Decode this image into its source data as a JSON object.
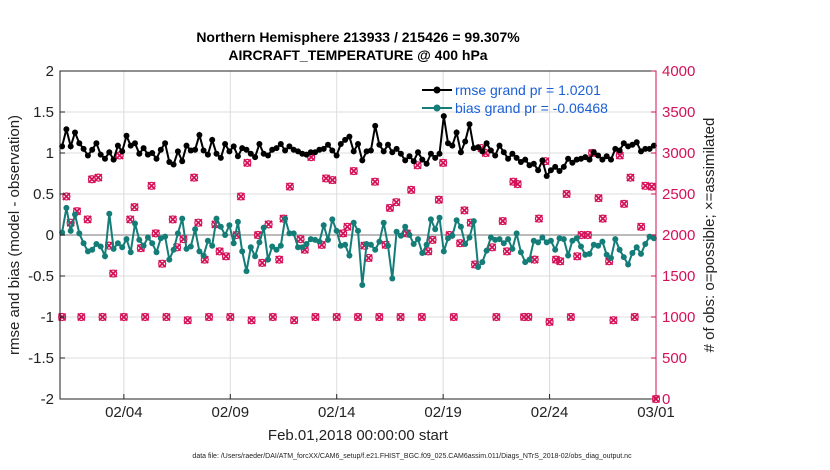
{
  "chart_data": {
    "type": "line",
    "title": "Northern Hemisphere 213933 / 215426 = 99.307%",
    "subtitle": "AIRCRAFT_TEMPERATURE @ 400 hPa",
    "xlabel": "Feb.01,2018 00:00:00 start",
    "ylabel": "rmse and bias (model - observation)",
    "y2label": "# of obs: o=possible; ×=assimilated",
    "footer": "data file: /Users/raeder/DAI/ATM_forcXX/CAM6_setup/f.e21.FHIST_BGC.f09_025.CAM6assim.011/Diags_NTrS_2018-02/obs_diag_output.nc",
    "xlim": [
      0,
      28
    ],
    "ylim": [
      -2,
      2
    ],
    "y2lim": [
      0,
      4000
    ],
    "xticks": [
      {
        "x": 3,
        "label": "02/04"
      },
      {
        "x": 8,
        "label": "02/09"
      },
      {
        "x": 13,
        "label": "02/14"
      },
      {
        "x": 18,
        "label": "02/19"
      },
      {
        "x": 23,
        "label": "02/24"
      },
      {
        "x": 28,
        "label": "03/01"
      }
    ],
    "yticks": [
      {
        "y": -2,
        "label": "-2"
      },
      {
        "y": -1.5,
        "label": "-1.5"
      },
      {
        "y": -1,
        "label": "-1"
      },
      {
        "y": -0.5,
        "label": "-0.5"
      },
      {
        "y": 0,
        "label": "0"
      },
      {
        "y": 0.5,
        "label": "0.5"
      },
      {
        "y": 1,
        "label": "1"
      },
      {
        "y": 1.5,
        "label": "1.5"
      },
      {
        "y": 2,
        "label": "2"
      }
    ],
    "y2ticks": [
      {
        "y": 0,
        "label": "0"
      },
      {
        "y": 500,
        "label": "500"
      },
      {
        "y": 1000,
        "label": "1000"
      },
      {
        "y": 1500,
        "label": "1500"
      },
      {
        "y": 2000,
        "label": "2000"
      },
      {
        "y": 2500,
        "label": "2500"
      },
      {
        "y": 3000,
        "label": "3000"
      },
      {
        "y": 3500,
        "label": "3500"
      },
      {
        "y": 4000,
        "label": "4000"
      }
    ],
    "grid": true,
    "legend_position": "top-right",
    "colors": {
      "rmse": "#000000",
      "bias": "#147d78",
      "obs": "#d41158",
      "y2axis": "#d41158",
      "zero": "#bbbbbb"
    },
    "series": [
      {
        "name": "rmse grand pr = 1.0201",
        "axis": "left",
        "values": [
          1.08,
          1.29,
          1.08,
          1.25,
          1.12,
          1.05,
          0.97,
          1.04,
          1.12,
          0.98,
          0.93,
          1.01,
          0.92,
          1.09,
          1.02,
          1.21,
          1.09,
          1.12,
          0.99,
          1.06,
          0.98,
          1.0,
          0.93,
          1.04,
          1.12,
          0.89,
          0.86,
          1.02,
          0.9,
          1.09,
          1.03,
          1.04,
          1.22,
          1.03,
          0.98,
          1.16,
          0.99,
          0.94,
          1.11,
          1.02,
          1.08,
          0.96,
          1.06,
          1.04,
          0.99,
          0.95,
          1.11,
          0.99,
          0.97,
          1.04,
          1.06,
          1.11,
          1.03,
          1.08,
          1.04,
          1.02,
          0.99,
          0.98,
          1.01,
          1.01,
          1.04,
          1.05,
          1.1,
          1.03,
          0.97,
          1.11,
          1.16,
          1.2,
          1.02,
          1.11,
          0.91,
          1.02,
          1.03,
          1.33,
          1.1,
          1.02,
          1.1,
          1.01,
          1.05,
          0.99,
          0.91,
          0.96,
          0.9,
          1.01,
          0.92,
          0.87,
          0.99,
          0.94,
          0.99,
          1.45,
          1.12,
          1.09,
          1.25,
          1.01,
          1.14,
          1.35,
          1.06,
          1.07,
          1.02,
          1.12,
          1.03,
          0.97,
          1.09,
          1.01,
          0.93,
          0.99,
          0.94,
          0.89,
          0.92,
          0.85,
          0.87,
          0.79,
          0.91,
          0.72,
          0.79,
          0.83,
          0.78,
          0.83,
          0.93,
          0.88,
          0.92,
          0.93,
          0.95,
          0.92,
          1.01,
          0.97,
          0.92,
          0.96,
          0.92,
          1.05,
          1.03,
          1.12,
          1.08,
          1.1,
          1.13,
          1.02,
          1.05,
          1.05,
          1.09
        ]
      },
      {
        "name": "bias grand pr = -0.06468",
        "axis": "left",
        "values": [
          0.03,
          0.33,
          0.05,
          0.25,
          0.02,
          -0.1,
          -0.2,
          -0.18,
          -0.11,
          -0.14,
          -0.26,
          0.26,
          -0.17,
          -0.1,
          -0.15,
          -0.05,
          -0.21,
          0.14,
          -0.06,
          -0.13,
          -0.03,
          -0.1,
          -0.21,
          -0.04,
          -0.02,
          -0.3,
          -0.18,
          0.02,
          0.2,
          -0.17,
          -0.14,
          0.07,
          -0.2,
          -0.25,
          -0.07,
          -0.13,
          0.2,
          0.1,
          0.0,
          0.12,
          -0.1,
          0.16,
          -0.2,
          -0.44,
          -0.15,
          -0.26,
          -0.09,
          0.09,
          -0.3,
          -0.14,
          -0.18,
          -0.13,
          0.2,
          0.02,
          0.02,
          -0.15,
          -0.15,
          -0.11,
          -0.05,
          -0.06,
          -0.08,
          0.12,
          -0.06,
          0.19,
          0.05,
          -0.13,
          -0.12,
          -0.25,
          0.15,
          0.05,
          -0.61,
          -0.11,
          -0.12,
          -0.18,
          -0.08,
          0.15,
          -0.13,
          -0.53,
          0.04,
          -0.01,
          0.1,
          0.0,
          -0.11,
          -0.05,
          -0.22,
          -0.12,
          0.19,
          0.07,
          0.21,
          -0.2,
          -0.04,
          -0.01,
          0.18,
          0.1,
          -0.11,
          -0.03,
          0.17,
          -0.39,
          -0.33,
          -0.19,
          -0.03,
          -0.06,
          -0.05,
          -0.1,
          -0.05,
          -0.17,
          0.02,
          -0.21,
          -0.33,
          -0.3,
          -0.07,
          -0.09,
          -0.03,
          -0.09,
          -0.07,
          -0.18,
          -0.04,
          -0.05,
          -0.25,
          -0.07,
          -0.04,
          -0.14,
          -0.24,
          -0.23,
          -0.12,
          -0.13,
          -0.08,
          -0.24,
          -0.28,
          -0.05,
          -0.18,
          -0.27,
          -0.36,
          -0.22,
          -0.15,
          -0.23,
          -0.11,
          -0.02,
          -0.04
        ]
      }
    ],
    "obs_points": {
      "axis": "right",
      "days": [
        0.1,
        0.5,
        1.0,
        1.5,
        2.0,
        2.5,
        3.0,
        3.5,
        4.0,
        4.5,
        5.0,
        5.5,
        6.0,
        6.5,
        7.0,
        7.5,
        8.0,
        8.5,
        9.0,
        9.5,
        10.0,
        10.5,
        11.0,
        11.5,
        12.0,
        12.5,
        13.0,
        13.5,
        14.0,
        14.5,
        15.0,
        15.5,
        16.0,
        16.5,
        17.0,
        17.5,
        18.0,
        18.5,
        19.0,
        19.5,
        20.0,
        20.5,
        21.0,
        21.5,
        22.0,
        22.5,
        23.0,
        23.5,
        24.0,
        24.5,
        25.0,
        25.5,
        26.0,
        26.5,
        27.0,
        27.5,
        28.0,
        0.3,
        0.8,
        1.3,
        1.8,
        2.3,
        2.8,
        3.3,
        3.8,
        4.3,
        4.8,
        5.3,
        5.8,
        6.3,
        6.8,
        7.3,
        7.8,
        8.3,
        8.8,
        9.3,
        9.8,
        10.3,
        10.8,
        11.3,
        11.8,
        12.3,
        12.8,
        13.3,
        13.8,
        14.3,
        14.8,
        15.3,
        15.8,
        16.3,
        16.8,
        17.3,
        17.8,
        18.3,
        18.8,
        19.3,
        19.8,
        20.3,
        20.8,
        21.3,
        21.8,
        22.3,
        22.8,
        23.3,
        23.8,
        24.3,
        24.8,
        25.3,
        25.8,
        26.3,
        26.8,
        27.3,
        27.8
      ],
      "counts": [
        1000,
        2150,
        1000,
        2680,
        1000,
        1530,
        1000,
        2340,
        1000,
        2020,
        1000,
        1850,
        960,
        2150,
        1000,
        1800,
        1000,
        2470,
        960,
        1660,
        1000,
        2200,
        960,
        1820,
        1000,
        2690,
        1000,
        2100,
        1000,
        1720,
        1000,
        2330,
        1000,
        2550,
        1000,
        1940,
        2880,
        1000,
        2300,
        1640,
        3000,
        1000,
        1800,
        2620,
        1000,
        2200,
        940,
        1680,
        1000,
        2000,
        3000,
        2200,
        960,
        2380,
        1000,
        2600,
        0,
        2470,
        2290,
        2190,
        2700,
        1870,
        2970,
        2190,
        1840,
        2600,
        1650,
        2190,
        1950,
        2700,
        1700,
        2130,
        1740,
        2000,
        2880,
        2000,
        2130,
        1700,
        2590,
        1950,
        2950,
        1880,
        2670,
        2020,
        2780,
        1870,
        2650,
        1880,
        2400,
        2020,
        2850,
        1800,
        2430,
        2000,
        1900,
        2150,
        3060,
        1850,
        2170,
        2650,
        1000,
        1700,
        2900,
        1700,
        2500,
        1740,
        2000,
        2450,
        1680,
        2970,
        2700,
        2100,
        2590
      ]
    }
  }
}
